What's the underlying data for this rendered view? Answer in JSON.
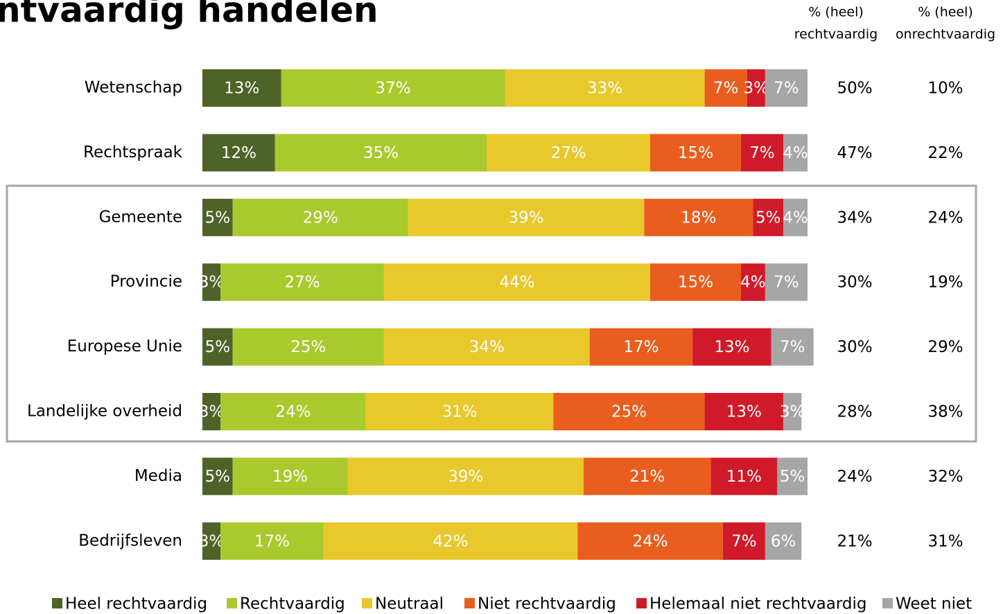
{
  "chart_data": {
    "type": "bar",
    "orientation": "horizontal",
    "stacked": true,
    "title": "ntvaardig handelen",
    "categories": [
      "Wetenschap",
      "Rechtspraak",
      "Gemeente",
      "Provincie",
      "Europese Unie",
      "Landelijke overheid",
      "Media",
      "Bedrijfsleven"
    ],
    "xlim": [
      0,
      100
    ],
    "series": [
      {
        "name": "Heel rechtvaardig",
        "color": "#4f6228",
        "values": [
          13,
          12,
          5,
          3,
          5,
          3,
          5,
          3
        ],
        "value_labels": [
          "13%",
          "12%",
          "5%",
          "3%",
          "5%",
          "3%",
          "5%",
          "3%"
        ]
      },
      {
        "name": "Rechtvaardig",
        "color": "#a9c92d",
        "values": [
          37,
          35,
          29,
          27,
          25,
          24,
          19,
          17
        ],
        "value_labels": [
          "37%",
          "35%",
          "29%",
          "27%",
          "25%",
          "24%",
          "19%",
          "17%"
        ]
      },
      {
        "name": "Neutraal",
        "color": "#e8c82a",
        "values": [
          33,
          27,
          39,
          44,
          34,
          31,
          39,
          42
        ],
        "value_labels": [
          "33%",
          "27%",
          "39%",
          "44%",
          "34%",
          "31%",
          "39%",
          "42%"
        ]
      },
      {
        "name": "Niet rechtvaardig",
        "color": "#e95e1e",
        "values": [
          7,
          15,
          18,
          15,
          17,
          25,
          21,
          24
        ],
        "value_labels": [
          "7%",
          "15%",
          "18%",
          "15%",
          "17%",
          "25%",
          "21%",
          "24%"
        ]
      },
      {
        "name": "Helemaal niet rechtvaardig",
        "color": "#d01a2a",
        "values": [
          3,
          7,
          5,
          4,
          13,
          13,
          11,
          7
        ],
        "value_labels": [
          "3%",
          "7%",
          "5%",
          "4%",
          "13%",
          "13%",
          "11%",
          "7%"
        ]
      },
      {
        "name": "Weet niet",
        "color": "#a6a6a6",
        "values": [
          7,
          4,
          4,
          7,
          7,
          3,
          5,
          6
        ],
        "value_labels": [
          "7%",
          "4%",
          "4%",
          "7%",
          "7%",
          "3%",
          "5%",
          "6%"
        ]
      }
    ],
    "columns": [
      {
        "header": [
          "% (heel)",
          "rechtvaardig"
        ],
        "values": [
          50,
          47,
          34,
          30,
          30,
          28,
          24,
          21
        ],
        "value_labels": [
          "50%",
          "47%",
          "34%",
          "30%",
          "30%",
          "28%",
          "24%",
          "21%"
        ]
      },
      {
        "header": [
          "% (heel)",
          "onrechtvaardig"
        ],
        "values": [
          10,
          22,
          24,
          19,
          29,
          38,
          32,
          31
        ],
        "value_labels": [
          "10%",
          "22%",
          "24%",
          "19%",
          "29%",
          "38%",
          "32%",
          "31%"
        ]
      }
    ]
  }
}
